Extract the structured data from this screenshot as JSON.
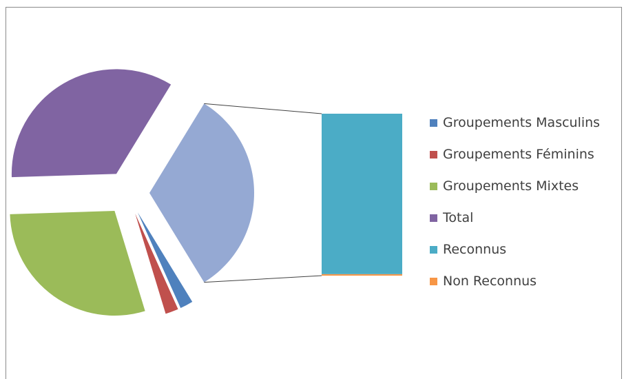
{
  "chart_data": {
    "type": "pie",
    "subtype": "pie-of-bar",
    "legend_position": "right",
    "series": [
      {
        "name": "Groupements Masculins",
        "value": 2,
        "color": "#4F81BD"
      },
      {
        "name": "Groupements Féminins",
        "value": 2,
        "color": "#C0504D"
      },
      {
        "name": "Groupements Mixtes",
        "value": 29,
        "color": "#9BBB59"
      },
      {
        "name": "Total",
        "value": 34,
        "color": "#8064A2"
      },
      {
        "name": "Reconnus",
        "value": 32,
        "color": "#4BACC6"
      },
      {
        "name": "Non Reconnus",
        "value": 0.3,
        "color": "#F79646"
      }
    ],
    "pie_slices": [
      "Groupements Masculins",
      "Groupements Féminins",
      "Groupements Mixtes",
      "Total"
    ],
    "pie_other_slice_color": "#95A9D3",
    "bar_segments": [
      "Reconnus",
      "Non Reconnus"
    ]
  }
}
